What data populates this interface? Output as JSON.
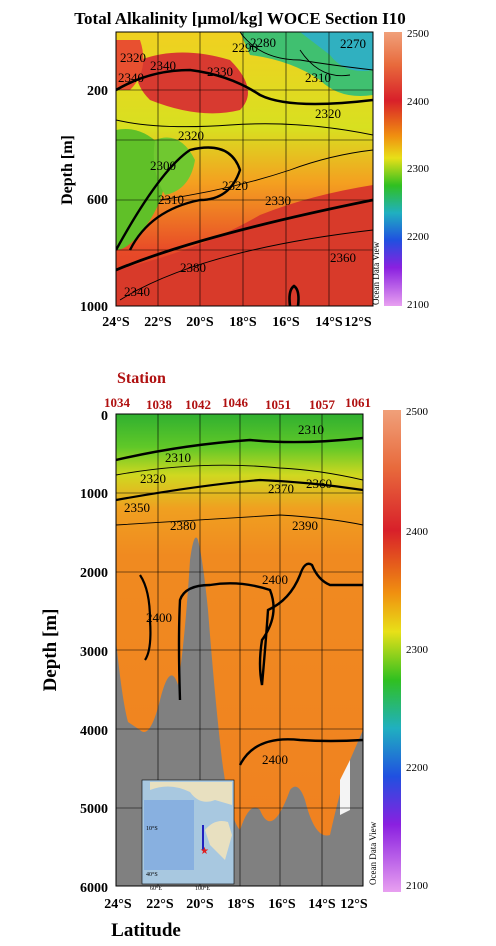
{
  "chart_data": [
    {
      "type": "heatmap",
      "title": "Total Alkalinity [µmol/kg]  WOCE Section I10",
      "ylabel": "Depth [m]",
      "xlabel": "",
      "x_ticks": [
        "24°S",
        "22°S",
        "20°S",
        "18°S",
        "16°S",
        "14°S",
        "12°S"
      ],
      "y_ticks": [
        "200",
        "600",
        "1000"
      ],
      "xlim": [
        -24,
        -11.5
      ],
      "ylim": [
        0,
        1000
      ],
      "colorbar": {
        "min": 2100,
        "max": 2500,
        "ticks": [
          "2500",
          "2400",
          "2300",
          "2200",
          "2100"
        ]
      },
      "watermark": "Ocean Data View",
      "contour_labels": [
        "2320",
        "2340",
        "2340",
        "2290",
        "2280",
        "2270",
        "2330",
        "2310",
        "2320",
        "2300",
        "2320",
        "2310",
        "2330",
        "2320",
        "2360",
        "2340",
        "2380"
      ]
    },
    {
      "type": "heatmap",
      "title": "",
      "station_title": "Station",
      "stations": [
        "1034",
        "1038",
        "1042",
        "1046",
        "1051",
        "1057",
        "1061"
      ],
      "ylabel": "Depth [m]",
      "xlabel": "Latitude",
      "x_ticks": [
        "24°S",
        "22°S",
        "20°S",
        "18°S",
        "16°S",
        "14°S",
        "12°S"
      ],
      "y_ticks": [
        "0",
        "1000",
        "2000",
        "3000",
        "4000",
        "5000",
        "6000"
      ],
      "xlim": [
        -24,
        -11.5
      ],
      "ylim": [
        0,
        6000
      ],
      "colorbar": {
        "min": 2100,
        "max": 2500,
        "ticks": [
          "2500",
          "2400",
          "2300",
          "2200",
          "2100"
        ]
      },
      "watermark": "Ocean Data View",
      "contour_labels": [
        "2310",
        "2310",
        "2320",
        "2350",
        "2370",
        "2360",
        "2380",
        "2390",
        "2400",
        "2400",
        "2400"
      ],
      "inset_labels": [
        "10°S",
        "40°S",
        "60°E",
        "100°E"
      ]
    }
  ],
  "colors": {
    "background": "#ffffff",
    "seafloor": "#808080",
    "station_text": "#b01010"
  }
}
